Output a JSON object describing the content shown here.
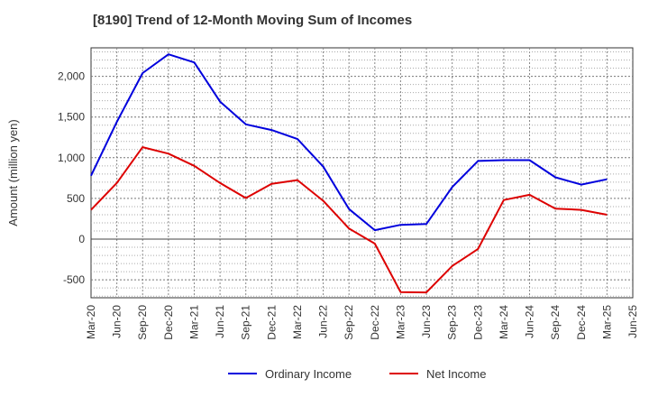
{
  "chart_data": {
    "type": "line",
    "title": "[8190]  Trend of 12-Month Moving Sum of Incomes",
    "xlabel": "",
    "ylabel": "Amount (million yen)",
    "ylim": [
      -720,
      2350
    ],
    "yticks": [
      -500,
      0,
      500,
      1000,
      1500,
      2000
    ],
    "ytick_labels": [
      "-500",
      "0",
      "500",
      "1,000",
      "1,500",
      "2,000"
    ],
    "categories": [
      "Mar-20",
      "Jun-20",
      "Sep-20",
      "Dec-20",
      "Mar-21",
      "Jun-21",
      "Sep-21",
      "Dec-21",
      "Mar-22",
      "Jun-22",
      "Sep-22",
      "Dec-22",
      "Mar-23",
      "Jun-23",
      "Sep-23",
      "Dec-23",
      "Mar-24",
      "Jun-24",
      "Sep-24",
      "Dec-24",
      "Mar-25",
      "Jun-25"
    ],
    "grid": true,
    "legend_position": "bottom-center",
    "series": [
      {
        "name": "Ordinary Income",
        "color": "#0000dd",
        "values": [
          780,
          1440,
          2040,
          2270,
          2170,
          1690,
          1410,
          1340,
          1230,
          890,
          370,
          110,
          175,
          185,
          640,
          960,
          970,
          970,
          760,
          670,
          735,
          null
        ]
      },
      {
        "name": "Net Income",
        "color": "#dd0000",
        "values": [
          360,
          690,
          1130,
          1050,
          900,
          690,
          505,
          680,
          725,
          470,
          130,
          -55,
          -650,
          -655,
          -330,
          -120,
          480,
          545,
          375,
          360,
          300,
          null
        ]
      }
    ]
  }
}
